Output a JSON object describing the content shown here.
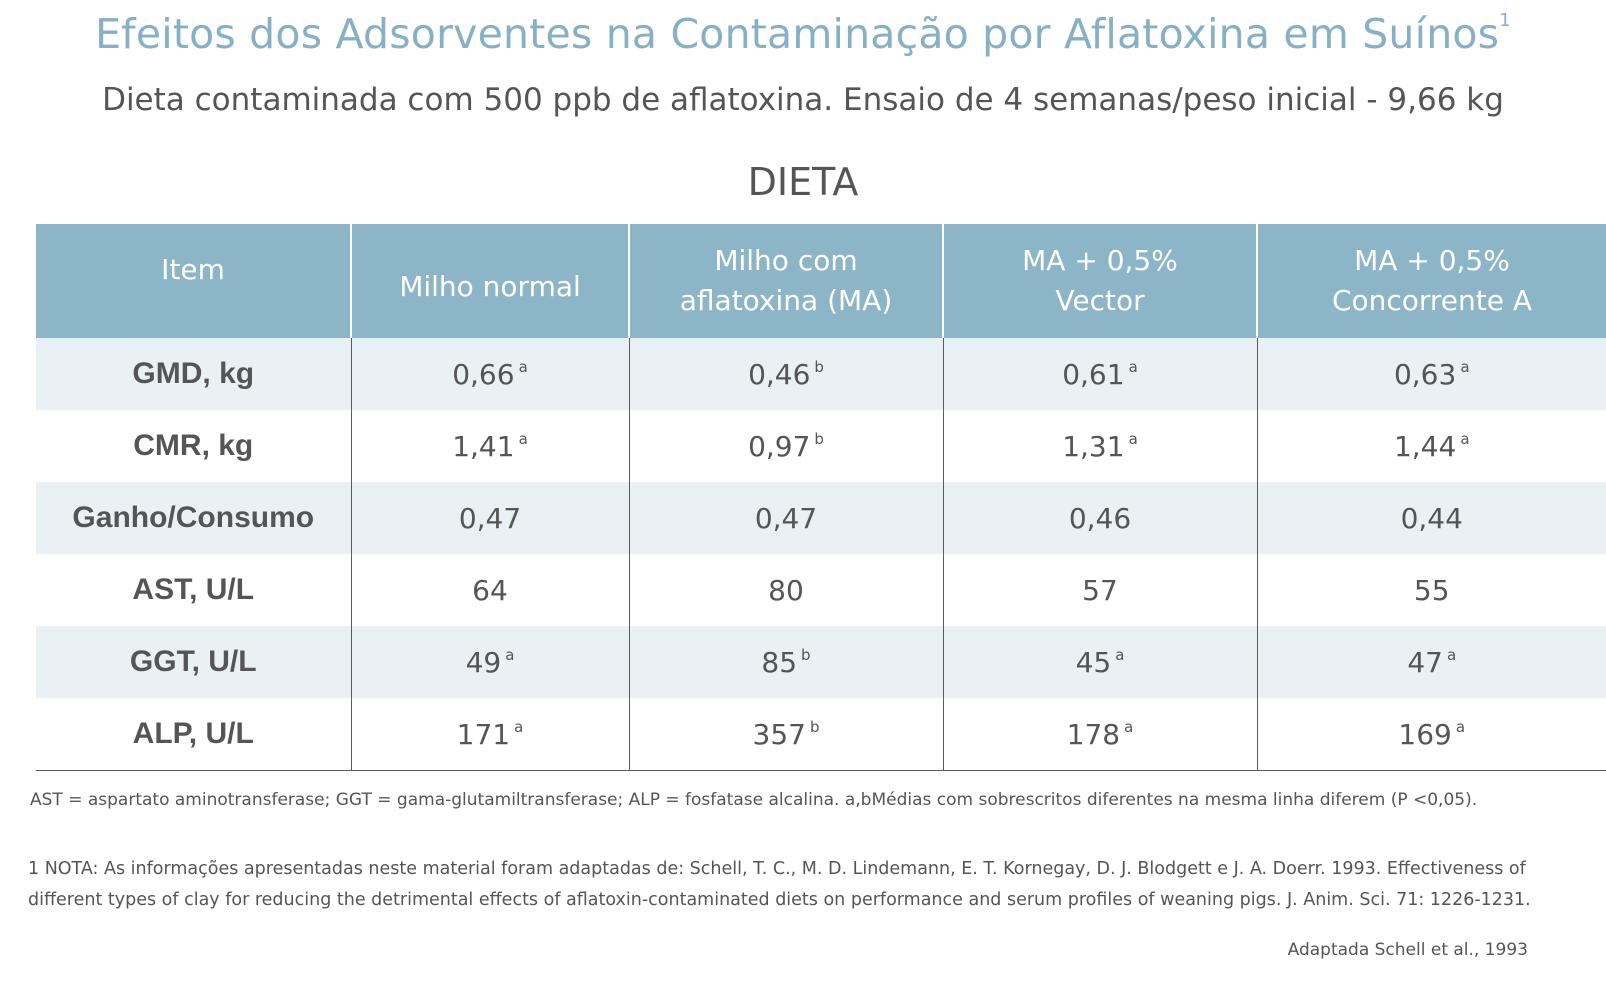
{
  "title": "Efeitos dos Adsorventes na Contaminação por Aflatoxina em Suínos",
  "title_superscript": "1",
  "subtitle": "Dieta contaminada com 500 ppb de aflatoxina. Ensaio de 4 semanas/peso inicial - 9,66 kg",
  "section_label": "DIETA",
  "colors": {
    "header_bg": "#8cb6c8",
    "title": "#86b0c6",
    "stripe": "#e9f1f4",
    "text": "#555555"
  },
  "chart_data": {
    "type": "table",
    "title": "DIETA",
    "columns": [
      {
        "line1": "Item",
        "line2": ""
      },
      {
        "line1": "Milho normal",
        "line2": ""
      },
      {
        "line1": "Milho com",
        "line2": "aflatoxina (MA)"
      },
      {
        "line1": "MA + 0,5%",
        "line2": "Vector"
      },
      {
        "line1": "MA + 0,5%",
        "line2": "Concorrente A"
      }
    ],
    "rows": [
      {
        "label": "GMD, kg",
        "cells": [
          {
            "v": "0,66",
            "s": "a"
          },
          {
            "v": "0,46",
            "s": "b"
          },
          {
            "v": "0,61",
            "s": "a"
          },
          {
            "v": "0,63",
            "s": "a"
          }
        ]
      },
      {
        "label": "CMR, kg",
        "cells": [
          {
            "v": "1,41",
            "s": "a"
          },
          {
            "v": "0,97",
            "s": "b"
          },
          {
            "v": "1,31",
            "s": "a"
          },
          {
            "v": "1,44",
            "s": "a"
          }
        ]
      },
      {
        "label": "Ganho/Consumo",
        "cells": [
          {
            "v": "0,47",
            "s": ""
          },
          {
            "v": "0,47",
            "s": ""
          },
          {
            "v": "0,46",
            "s": ""
          },
          {
            "v": "0,44",
            "s": ""
          }
        ]
      },
      {
        "label": "AST, U/L",
        "cells": [
          {
            "v": "64",
            "s": ""
          },
          {
            "v": "80",
            "s": ""
          },
          {
            "v": "57",
            "s": ""
          },
          {
            "v": "55",
            "s": ""
          }
        ]
      },
      {
        "label": "GGT, U/L",
        "cells": [
          {
            "v": "49",
            "s": "a"
          },
          {
            "v": "85",
            "s": "b"
          },
          {
            "v": "45",
            "s": "a"
          },
          {
            "v": "47",
            "s": "a"
          }
        ]
      },
      {
        "label": "ALP, U/L",
        "cells": [
          {
            "v": "171",
            "s": "a"
          },
          {
            "v": "357",
            "s": "b"
          },
          {
            "v": "178",
            "s": "a"
          },
          {
            "v": "169",
            "s": "a"
          }
        ]
      }
    ]
  },
  "footnote": "AST = aspartato aminotransferase; GGT = gama-glutamiltransferase; ALP = fosfatase alcalina. a,bMédias com sobrescritos diferentes na mesma linha diferem (P <0,05).",
  "note": "1 NOTA: As informações apresentadas neste material foram adaptadas de: Schell, T. C., M. D. Lindemann, E. T. Kornegay, D. J. Blodgett e J. A. Doerr. 1993. Effectiveness of different types of clay for reducing the detrimental effects of aflatoxin-contaminated diets on performance and serum profiles of weaning pigs. J. Anim. Sci. 71: 1226-1231.",
  "source": "Adaptada Schell et al., 1993"
}
